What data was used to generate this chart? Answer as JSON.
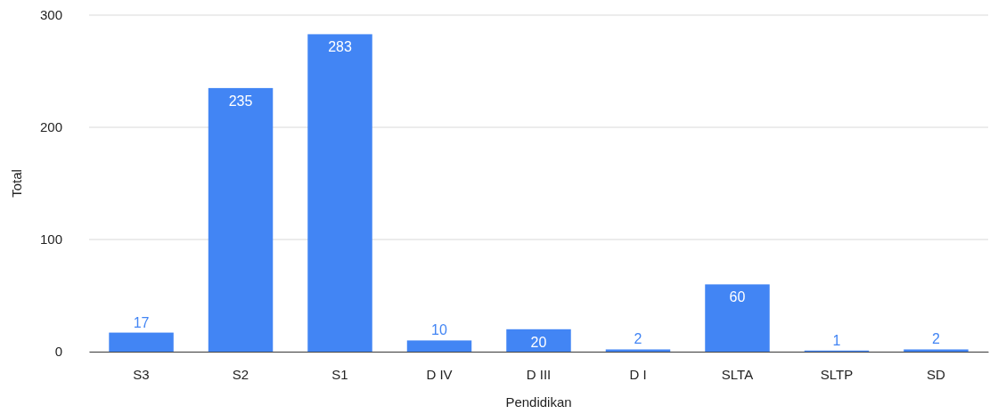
{
  "chart_data": {
    "type": "bar",
    "xlabel": "Pendidikan",
    "ylabel": "Total",
    "categories": [
      "S3",
      "S2",
      "S1",
      "D IV",
      "D III",
      "D I",
      "SLTA",
      "SLTP",
      "SD"
    ],
    "values": [
      17,
      235,
      283,
      10,
      20,
      2,
      60,
      1,
      2
    ],
    "color": "#4285f4",
    "ylim": [
      0,
      300
    ],
    "yticks": [
      0,
      100,
      200,
      300
    ],
    "grid": "y",
    "data_labels": true
  }
}
